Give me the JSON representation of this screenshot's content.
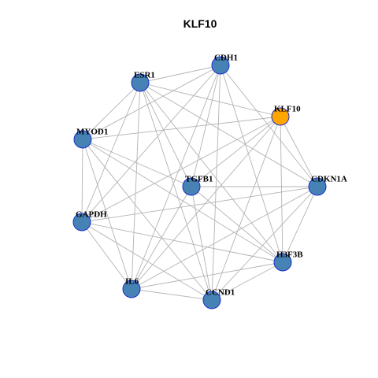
{
  "title": "KLF10",
  "nodes": [
    {
      "label": "CDH1",
      "color": "#4682b4"
    },
    {
      "label": "ESR1",
      "color": "#4682b4"
    },
    {
      "label": "KLF10",
      "color": "#ffa500"
    },
    {
      "label": "MYOD1",
      "color": "#4682b4"
    },
    {
      "label": "CDKN1A",
      "color": "#4682b4"
    },
    {
      "label": "TGFB1",
      "color": "#4682b4"
    },
    {
      "label": "GAPDH",
      "color": "#4682b4"
    },
    {
      "label": "H3F3B",
      "color": "#4682b4"
    },
    {
      "label": "IL6",
      "color": "#4682b4"
    },
    {
      "label": "CCND1",
      "color": "#4682b4"
    }
  ],
  "edges": [
    [
      0,
      1
    ],
    [
      0,
      3
    ],
    [
      0,
      6
    ],
    [
      0,
      8
    ],
    [
      0,
      9
    ],
    [
      0,
      7
    ],
    [
      0,
      4
    ],
    [
      0,
      5
    ],
    [
      1,
      2
    ],
    [
      1,
      3
    ],
    [
      1,
      4
    ],
    [
      1,
      7
    ],
    [
      1,
      9
    ],
    [
      1,
      8
    ],
    [
      1,
      6
    ],
    [
      1,
      5
    ],
    [
      2,
      3
    ],
    [
      2,
      4
    ],
    [
      2,
      5
    ],
    [
      2,
      7
    ],
    [
      2,
      9
    ],
    [
      2,
      8
    ],
    [
      2,
      6
    ],
    [
      3,
      5
    ],
    [
      3,
      6
    ],
    [
      3,
      8
    ],
    [
      3,
      9
    ],
    [
      3,
      7
    ],
    [
      4,
      5
    ],
    [
      4,
      6
    ],
    [
      4,
      7
    ],
    [
      4,
      8
    ],
    [
      4,
      9
    ],
    [
      5,
      8
    ],
    [
      5,
      9
    ],
    [
      5,
      7
    ],
    [
      6,
      8
    ],
    [
      6,
      9
    ],
    [
      6,
      7
    ],
    [
      7,
      8
    ],
    [
      7,
      9
    ],
    [
      8,
      9
    ]
  ]
}
